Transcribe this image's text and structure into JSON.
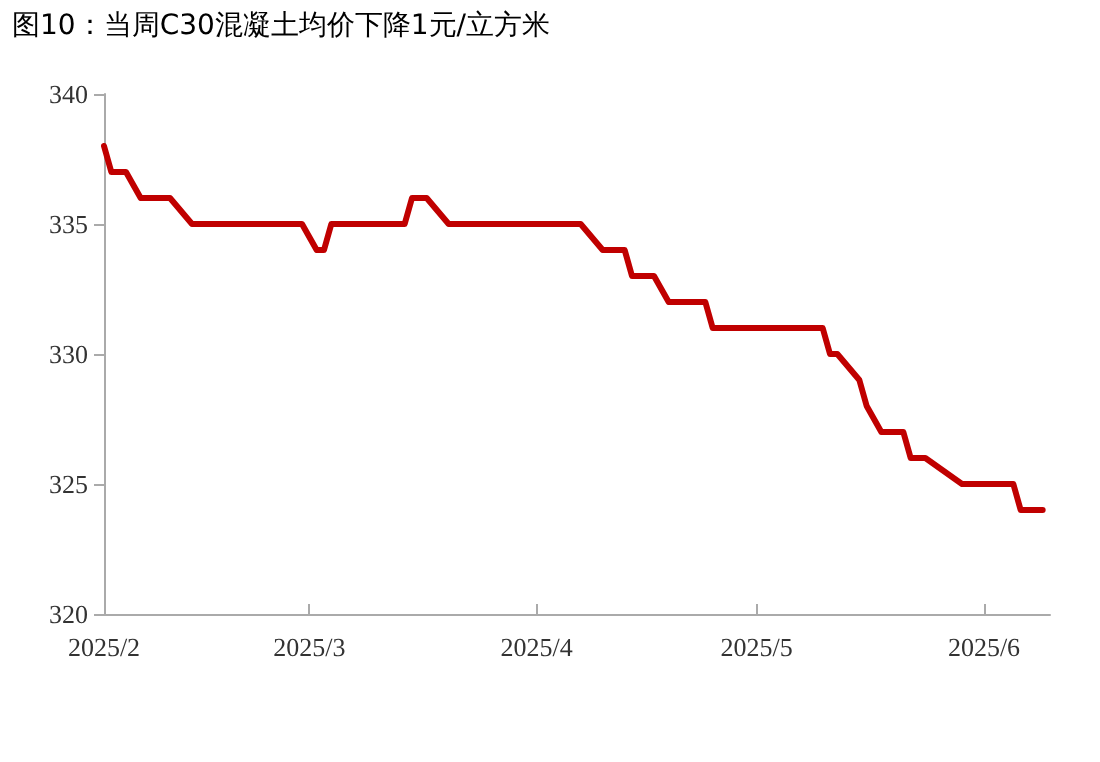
{
  "chart_data": {
    "type": "line",
    "title": "图10：当周C30混凝土均价下降1元/立方米",
    "x": [
      "2025-02-01",
      "2025-02-02",
      "2025-02-04",
      "2025-02-06",
      "2025-02-10",
      "2025-02-13",
      "2025-02-28",
      "2025-03-02",
      "2025-03-03",
      "2025-03-04",
      "2025-03-14",
      "2025-03-15",
      "2025-03-17",
      "2025-03-20",
      "2025-04-07",
      "2025-04-10",
      "2025-04-13",
      "2025-04-14",
      "2025-04-17",
      "2025-04-19",
      "2025-04-24",
      "2025-04-25",
      "2025-05-10",
      "2025-05-11",
      "2025-05-12",
      "2025-05-15",
      "2025-05-16",
      "2025-05-18",
      "2025-05-21",
      "2025-05-22",
      "2025-05-24",
      "2025-05-29",
      "2025-06-05",
      "2025-06-06",
      "2025-06-09"
    ],
    "series": [
      {
        "color": "#c00000",
        "values": [
          338,
          337,
          337,
          336,
          336,
          335,
          335,
          334,
          334,
          335,
          335,
          336,
          336,
          335,
          335,
          334,
          334,
          333,
          333,
          332,
          332,
          331,
          331,
          330,
          330,
          329,
          328,
          327,
          327,
          326,
          326,
          325,
          325,
          324,
          324
        ]
      }
    ],
    "xlim": [
      "2025-02-01",
      "2025-06-10"
    ],
    "xticks": [
      {
        "value": "2025-02",
        "label": "2025/2"
      },
      {
        "value": "2025-03",
        "label": "2025/3"
      },
      {
        "value": "2025-04",
        "label": "2025/4"
      },
      {
        "value": "2025-05",
        "label": "2025/5"
      },
      {
        "value": "2025-06",
        "label": "2025/6"
      }
    ],
    "ylim": [
      320,
      340
    ],
    "yticks": [
      320,
      325,
      330,
      335,
      340
    ],
    "grid": false,
    "marker": "none",
    "line_style": "solid"
  }
}
